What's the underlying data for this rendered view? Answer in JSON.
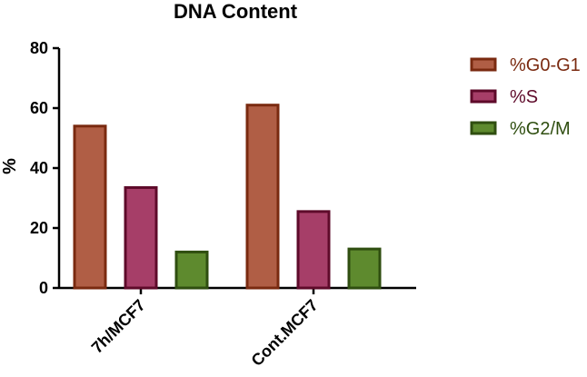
{
  "chart_data": {
    "type": "bar",
    "title": "DNA Content",
    "xlabel": "",
    "ylabel": "%",
    "ylim": [
      0,
      80
    ],
    "yticks": [
      0,
      20,
      40,
      60,
      80
    ],
    "grid": false,
    "legend_position": "right",
    "categories": [
      "7h/MCF7",
      "Cont.MCF7"
    ],
    "series": [
      {
        "name": "%G0-G1",
        "values": [
          54,
          61
        ],
        "fill": "#b05e45",
        "stroke": "#7a2a10",
        "text_color": "#7a2a10"
      },
      {
        "name": "%S",
        "values": [
          33.5,
          25.5
        ],
        "fill": "#a63e68",
        "stroke": "#5e0a2a",
        "text_color": "#5e0a2a"
      },
      {
        "name": "%G2/M",
        "values": [
          12,
          13
        ],
        "fill": "#5e8a2e",
        "stroke": "#2f4e10",
        "text_color": "#2f4e10"
      }
    ]
  }
}
